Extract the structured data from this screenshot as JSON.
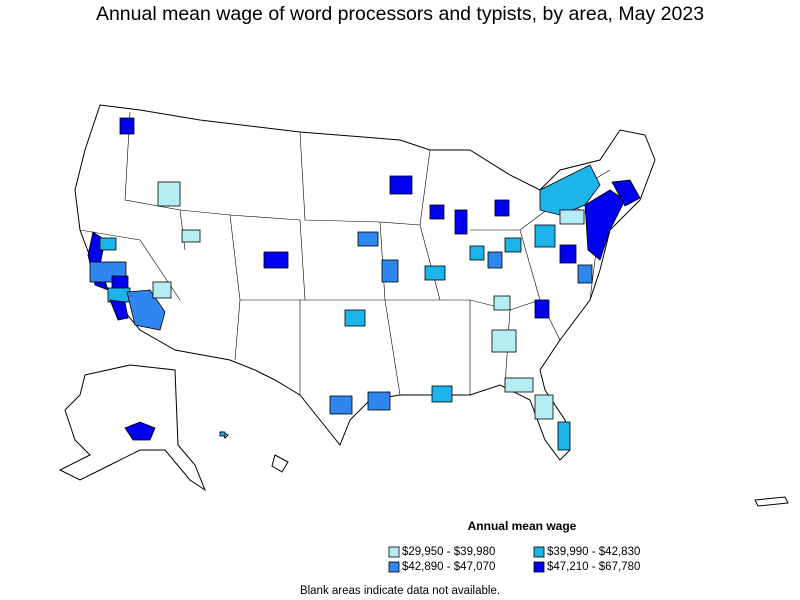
{
  "title": "Annual mean wage of word processors and typists, by area, May 2023",
  "legend": {
    "title": "Annual mean wage",
    "items": [
      {
        "label": "$29,950 - $39,980",
        "color": "#b4eef2"
      },
      {
        "label": "$39,990 - $42,830",
        "color": "#1cb4ea"
      },
      {
        "label": "$42,890 - $47,070",
        "color": "#2e86ee"
      },
      {
        "label": "$47,210 - $67,780",
        "color": "#0000f0"
      }
    ]
  },
  "footnote": "Blank areas indicate data not available."
}
